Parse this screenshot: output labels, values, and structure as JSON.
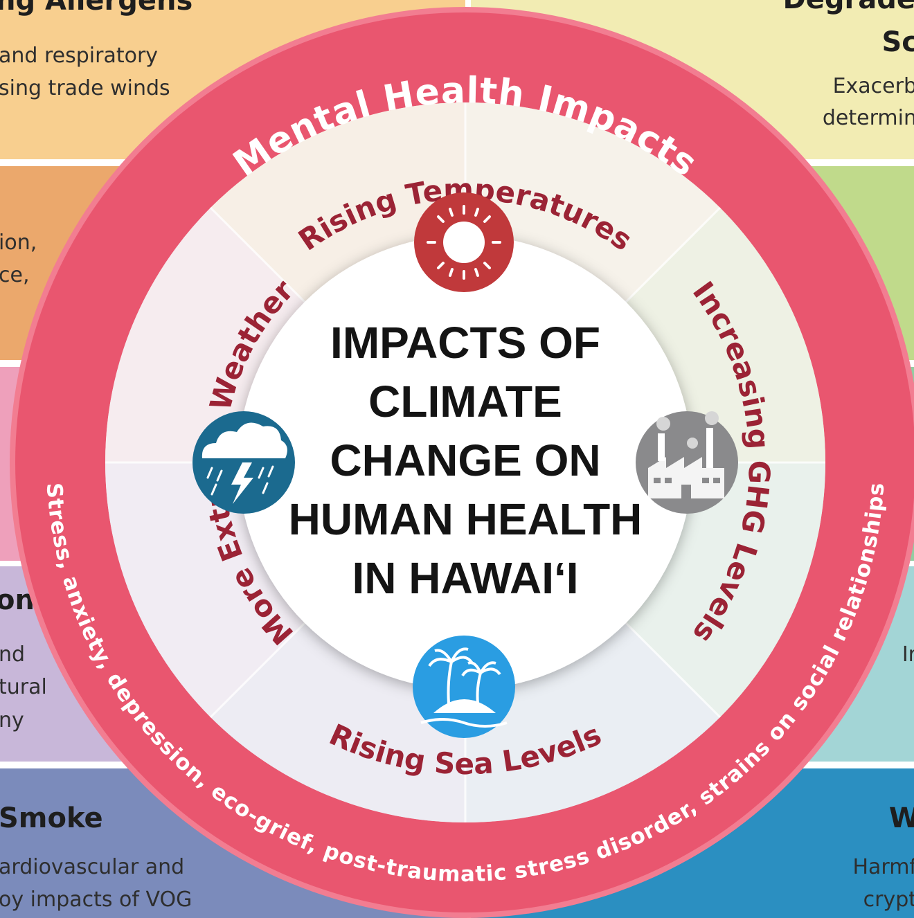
{
  "left_panels": [
    {
      "heading": "ng Allergens",
      "lines": [
        "and respiratory",
        "sing trade winds"
      ]
    },
    {
      "lines": [
        "ion,",
        "ce,"
      ]
    },
    {
      "heading": "on",
      "lines": [
        "nd",
        "tural",
        "ny"
      ]
    },
    {
      "heading": "Smoke",
      "lines": [
        "ardiovascular and",
        "oy impacts of VOG"
      ]
    }
  ],
  "right_panels": [
    {
      "heading": "Degrade",
      "subheading": "Sc",
      "lines": [
        "Exacerb",
        "determin"
      ]
    },
    {
      "lines": [
        "Ir"
      ]
    },
    {
      "heading": "W",
      "lines": [
        "Harmf",
        "crypt"
      ]
    }
  ],
  "outer_ring": {
    "title": "Mental Health Impacts",
    "description": "Stress, anxiety, depression, eco-grief, post-traumatic stress disorder, strains on social relationships"
  },
  "inner_ring": {
    "top": "Rising Temperatures",
    "right": "Increasing GHG Levels",
    "bottom": "Rising Sea Levels",
    "left": "More Extreme Weather"
  },
  "center": {
    "title_lines": [
      "IMPACTS OF",
      "CLIMATE",
      "CHANGE ON",
      "HUMAN HEALTH",
      "IN HAWAIʻI"
    ]
  }
}
